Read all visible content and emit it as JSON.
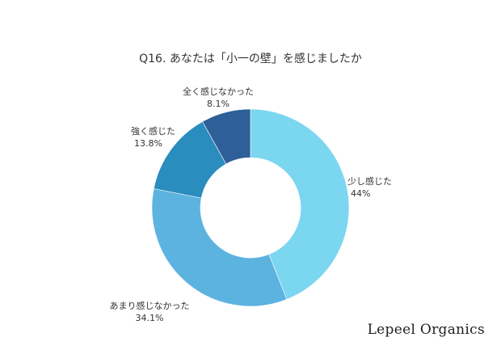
{
  "chart_data": {
    "type": "pie",
    "title": "Q16. あなたは「小一の壁」を感じましたか",
    "donut": true,
    "categories": [
      "少し感じた",
      "あまり感じなかった",
      "強く感じた",
      "全く感じなかった"
    ],
    "values": [
      44,
      34.1,
      13.8,
      8.1
    ],
    "value_labels": [
      "44%",
      "34.1%",
      "13.8%",
      "8.1%"
    ],
    "colors": [
      "#7BD6F0",
      "#5DB3E0",
      "#2B8CBE",
      "#2F5F98"
    ],
    "legend": "none"
  },
  "brand": {
    "name": "Lepeel Organics"
  }
}
